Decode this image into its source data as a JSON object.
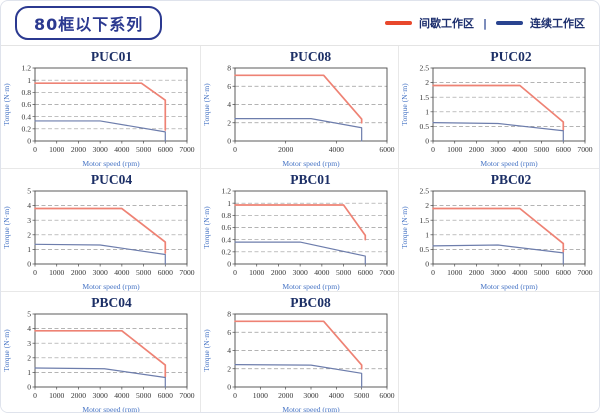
{
  "page": {
    "title_badge": "80框以下系列"
  },
  "legend": {
    "separator": "|",
    "items": [
      {
        "label": "间歇工作区",
        "color": "#e8482c"
      },
      {
        "label": "连续工作区",
        "color": "#2a4490"
      }
    ]
  },
  "colors": {
    "intermittent_line": "#ee8274",
    "continuous_line": "#6d7dac",
    "grid_line": "#9b9b9b",
    "plot_frame": "#4a4a4a",
    "axis_label": "#4472c4",
    "title_navy": "#1c2f66"
  },
  "chart_data": [
    {
      "type": "line",
      "title": "PUC01",
      "xlabel": "Motor speed (rpm)",
      "ylabel": "Torque (N·m)",
      "xlim": [
        0,
        7000
      ],
      "xstep": 1000,
      "ylim": [
        0,
        1.2
      ],
      "ystep": 0.2,
      "series": [
        {
          "name": "间歇工作区",
          "color": "#ee8274",
          "points": [
            [
              0,
              0.95
            ],
            [
              4900,
              0.95
            ],
            [
              6000,
              0.67
            ],
            [
              6000,
              0.18
            ]
          ]
        },
        {
          "name": "连续工作区",
          "color": "#6d7dac",
          "points": [
            [
              0,
              0.33
            ],
            [
              3000,
              0.33
            ],
            [
              6000,
              0.15
            ],
            [
              6000,
              0
            ]
          ]
        }
      ]
    },
    {
      "type": "line",
      "title": "PUC08",
      "xlabel": "Motor speed (rpm)",
      "ylabel": "Torque (N·m)",
      "xlim": [
        0,
        6000
      ],
      "xstep": 2000,
      "ylim": [
        0,
        8
      ],
      "ystep": 2,
      "series": [
        {
          "name": "间歇工作区",
          "color": "#ee8274",
          "points": [
            [
              0,
              7.2
            ],
            [
              3500,
              7.2
            ],
            [
              5000,
              2.4
            ],
            [
              5000,
              2.0
            ]
          ]
        },
        {
          "name": "连续工作区",
          "color": "#6d7dac",
          "points": [
            [
              0,
              2.45
            ],
            [
              3000,
              2.45
            ],
            [
              5000,
              1.45
            ],
            [
              5000,
              0
            ]
          ]
        }
      ]
    },
    {
      "type": "line",
      "title": "PUC02",
      "xlabel": "Motor speed (rpm)",
      "ylabel": "Torque (N·m)",
      "xlim": [
        0,
        7000
      ],
      "xstep": 1000,
      "ylim": [
        0,
        2.5
      ],
      "ystep": 0.5,
      "series": [
        {
          "name": "间歇工作区",
          "color": "#ee8274",
          "points": [
            [
              0,
              1.9
            ],
            [
              4000,
              1.9
            ],
            [
              6000,
              0.65
            ],
            [
              6000,
              0.38
            ]
          ]
        },
        {
          "name": "连续工作区",
          "color": "#6d7dac",
          "points": [
            [
              0,
              0.63
            ],
            [
              3000,
              0.6
            ],
            [
              6000,
              0.35
            ],
            [
              6000,
              0
            ]
          ]
        }
      ]
    },
    {
      "type": "line",
      "title": "PUC04",
      "xlabel": "Motor speed (rpm)",
      "ylabel": "Torque (N·m)",
      "xlim": [
        0,
        7000
      ],
      "xstep": 1000,
      "ylim": [
        0,
        5
      ],
      "ystep": 1,
      "series": [
        {
          "name": "间歇工作区",
          "color": "#ee8274",
          "points": [
            [
              0,
              3.8
            ],
            [
              4000,
              3.8
            ],
            [
              6000,
              1.5
            ],
            [
              6000,
              0.75
            ]
          ]
        },
        {
          "name": "连续工作区",
          "color": "#6d7dac",
          "points": [
            [
              0,
              1.35
            ],
            [
              3000,
              1.3
            ],
            [
              6000,
              0.65
            ],
            [
              6000,
              0
            ]
          ]
        }
      ]
    },
    {
      "type": "line",
      "title": "PBC01",
      "xlabel": "Motor speed (rpm)",
      "ylabel": "Torque (N·m)",
      "xlim": [
        0,
        7000
      ],
      "xstep": 1000,
      "ylim": [
        0,
        1.2
      ],
      "ystep": 0.2,
      "series": [
        {
          "name": "间歇工作区",
          "color": "#ee8274",
          "points": [
            [
              0,
              0.97
            ],
            [
              5000,
              0.97
            ],
            [
              6000,
              0.47
            ],
            [
              6000,
              0.4
            ]
          ]
        },
        {
          "name": "连续工作区",
          "color": "#6d7dac",
          "points": [
            [
              0,
              0.36
            ],
            [
              3000,
              0.36
            ],
            [
              6000,
              0.13
            ],
            [
              6000,
              0
            ]
          ]
        }
      ]
    },
    {
      "type": "line",
      "title": "PBC02",
      "xlabel": "Motor speed (rpm)",
      "ylabel": "Torque (N·m)",
      "xlim": [
        0,
        7000
      ],
      "xstep": 1000,
      "ylim": [
        0,
        2.5
      ],
      "ystep": 0.5,
      "series": [
        {
          "name": "间歇工作区",
          "color": "#ee8274",
          "points": [
            [
              0,
              1.9
            ],
            [
              4000,
              1.9
            ],
            [
              6000,
              0.7
            ],
            [
              6000,
              0.42
            ]
          ]
        },
        {
          "name": "连续工作区",
          "color": "#6d7dac",
          "points": [
            [
              0,
              0.62
            ],
            [
              3000,
              0.65
            ],
            [
              6000,
              0.38
            ],
            [
              6000,
              0
            ]
          ]
        }
      ]
    },
    {
      "type": "line",
      "title": "PBC04",
      "xlabel": "Motor speed (rpm)",
      "ylabel": "Torque (N·m)",
      "xlim": [
        0,
        7000
      ],
      "xstep": 1000,
      "ylim": [
        0,
        5
      ],
      "ystep": 1,
      "series": [
        {
          "name": "间歇工作区",
          "color": "#ee8274",
          "points": [
            [
              0,
              3.85
            ],
            [
              4000,
              3.85
            ],
            [
              6000,
              1.5
            ],
            [
              6000,
              0.7
            ]
          ]
        },
        {
          "name": "连续工作区",
          "color": "#6d7dac",
          "points": [
            [
              0,
              1.3
            ],
            [
              3200,
              1.25
            ],
            [
              6000,
              0.65
            ],
            [
              6000,
              0
            ]
          ]
        }
      ]
    },
    {
      "type": "line",
      "title": "PBC08",
      "xlabel": "Motor speed (rpm)",
      "ylabel": "Torque (N·m)",
      "xlim": [
        0,
        6000
      ],
      "xstep": 1000,
      "ylim": [
        0,
        8
      ],
      "ystep": 2,
      "series": [
        {
          "name": "间歇工作区",
          "color": "#ee8274",
          "points": [
            [
              0,
              7.2
            ],
            [
              3500,
              7.2
            ],
            [
              5000,
              2.4
            ],
            [
              5000,
              2.0
            ]
          ]
        },
        {
          "name": "连续工作区",
          "color": "#6d7dac",
          "points": [
            [
              0,
              2.45
            ],
            [
              3000,
              2.4
            ],
            [
              5000,
              1.5
            ],
            [
              5000,
              0
            ]
          ]
        }
      ]
    }
  ]
}
